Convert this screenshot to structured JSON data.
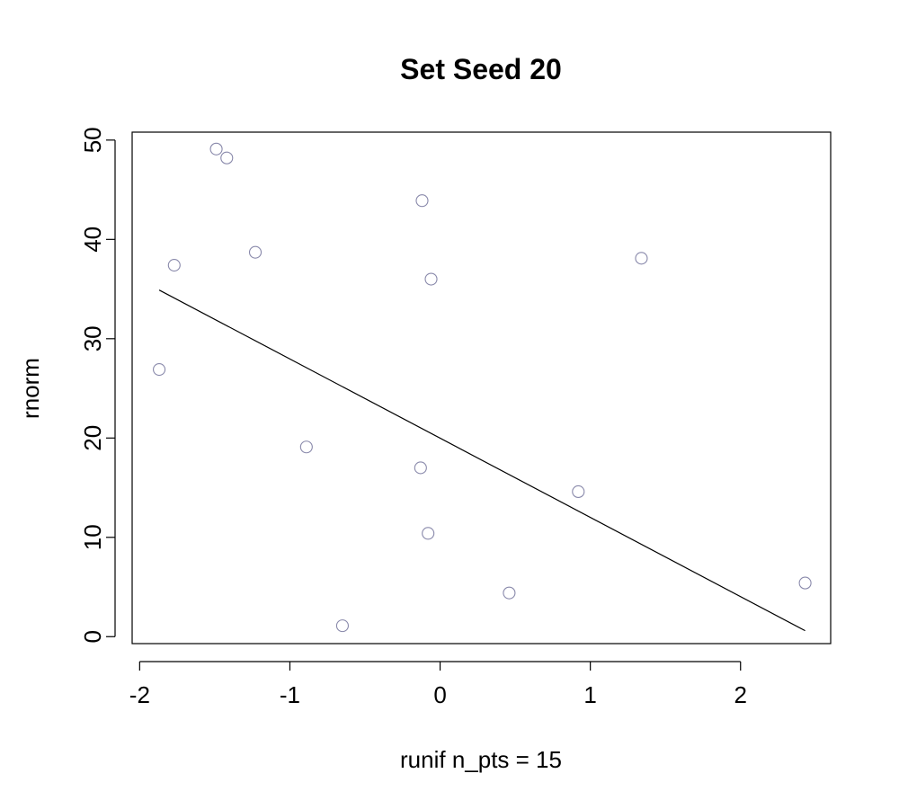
{
  "chart_data": {
    "type": "scatter",
    "title": "Set Seed 20",
    "xlabel": "runif n_pts = 15",
    "ylabel": "rnorm",
    "xlim": [
      -2.05,
      2.6
    ],
    "ylim": [
      -0.7,
      50.8
    ],
    "x_ticks": [
      -2,
      -1,
      0,
      1,
      2
    ],
    "y_ticks": [
      0,
      10,
      20,
      30,
      40,
      50
    ],
    "x_tick_labels": [
      "-2",
      "-1",
      "0",
      "1",
      "2"
    ],
    "y_tick_labels": [
      "0",
      "10",
      "20",
      "30",
      "40",
      "50"
    ],
    "grid": false,
    "legend": "none",
    "point_color": "#8888aa",
    "line_color": "#000000",
    "points": [
      {
        "x": -1.49,
        "y": 49.1
      },
      {
        "x": -1.42,
        "y": 48.2
      },
      {
        "x": -1.77,
        "y": 37.4
      },
      {
        "x": -1.23,
        "y": 38.7
      },
      {
        "x": -1.87,
        "y": 26.9
      },
      {
        "x": -0.89,
        "y": 19.1
      },
      {
        "x": -0.65,
        "y": 1.1
      },
      {
        "x": -0.12,
        "y": 43.9
      },
      {
        "x": -0.06,
        "y": 36.0
      },
      {
        "x": -0.13,
        "y": 17.0
      },
      {
        "x": -0.08,
        "y": 10.4
      },
      {
        "x": 0.46,
        "y": 4.4
      },
      {
        "x": 0.92,
        "y": 14.6
      },
      {
        "x": 1.34,
        "y": 38.1
      },
      {
        "x": 2.43,
        "y": 5.4
      }
    ],
    "fit_line": {
      "x": [
        -1.87,
        2.43
      ],
      "y": [
        34.9,
        0.6
      ]
    }
  }
}
